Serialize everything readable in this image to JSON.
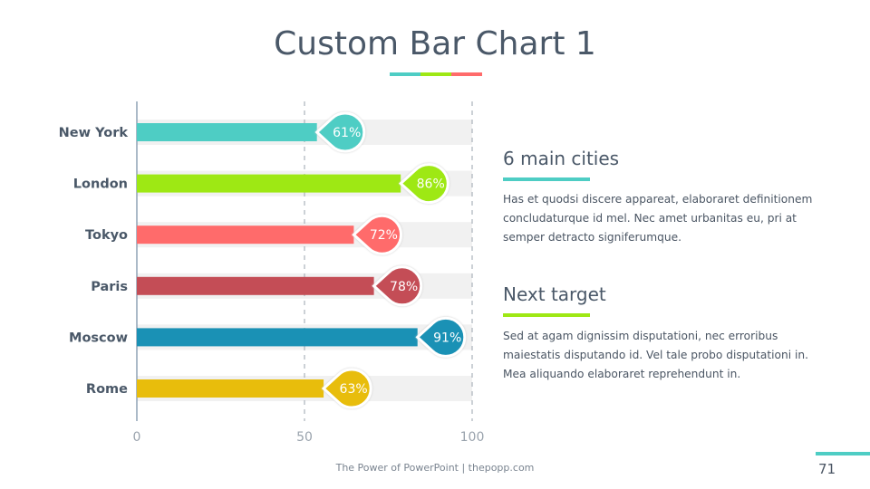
{
  "title": "Custom Bar Chart 1",
  "title_accent_colors": [
    "#4ecdc4",
    "#9ee814",
    "#ff6b6b"
  ],
  "chart_data": {
    "type": "bar",
    "orientation": "horizontal",
    "categories": [
      "New York",
      "London",
      "Tokyo",
      "Paris",
      "Moscow",
      "Rome"
    ],
    "values": [
      61,
      86,
      72,
      78,
      91,
      63
    ],
    "labels": [
      "61%",
      "86%",
      "72%",
      "78%",
      "91%",
      "63%"
    ],
    "colors": [
      "#4ecdc4",
      "#9ee814",
      "#ff6b6b",
      "#c44d56",
      "#1a91b5",
      "#e8bd0c"
    ],
    "xlim": [
      0,
      100
    ],
    "xticks": [
      "0",
      "50",
      "100"
    ],
    "gridlines": [
      50,
      100
    ]
  },
  "sections": [
    {
      "heading": "6 main cities",
      "color": "#4ecdc4",
      "body": "Has et quodsi discere appareat, elaboraret definitionem concludaturque id mel. Nec amet urbanitas eu, pri at semper detracto signiferumque."
    },
    {
      "heading": "Next target",
      "color": "#9ee814",
      "body": "Sed at agam dignissim disputationi, nec erroribus maiestatis disputando id. Vel tale probo disputationi in. Mea aliquando elaboraret reprehendunt in."
    }
  ],
  "footer": "The Power of PowerPoint | thepopp.com",
  "page_number": "71"
}
